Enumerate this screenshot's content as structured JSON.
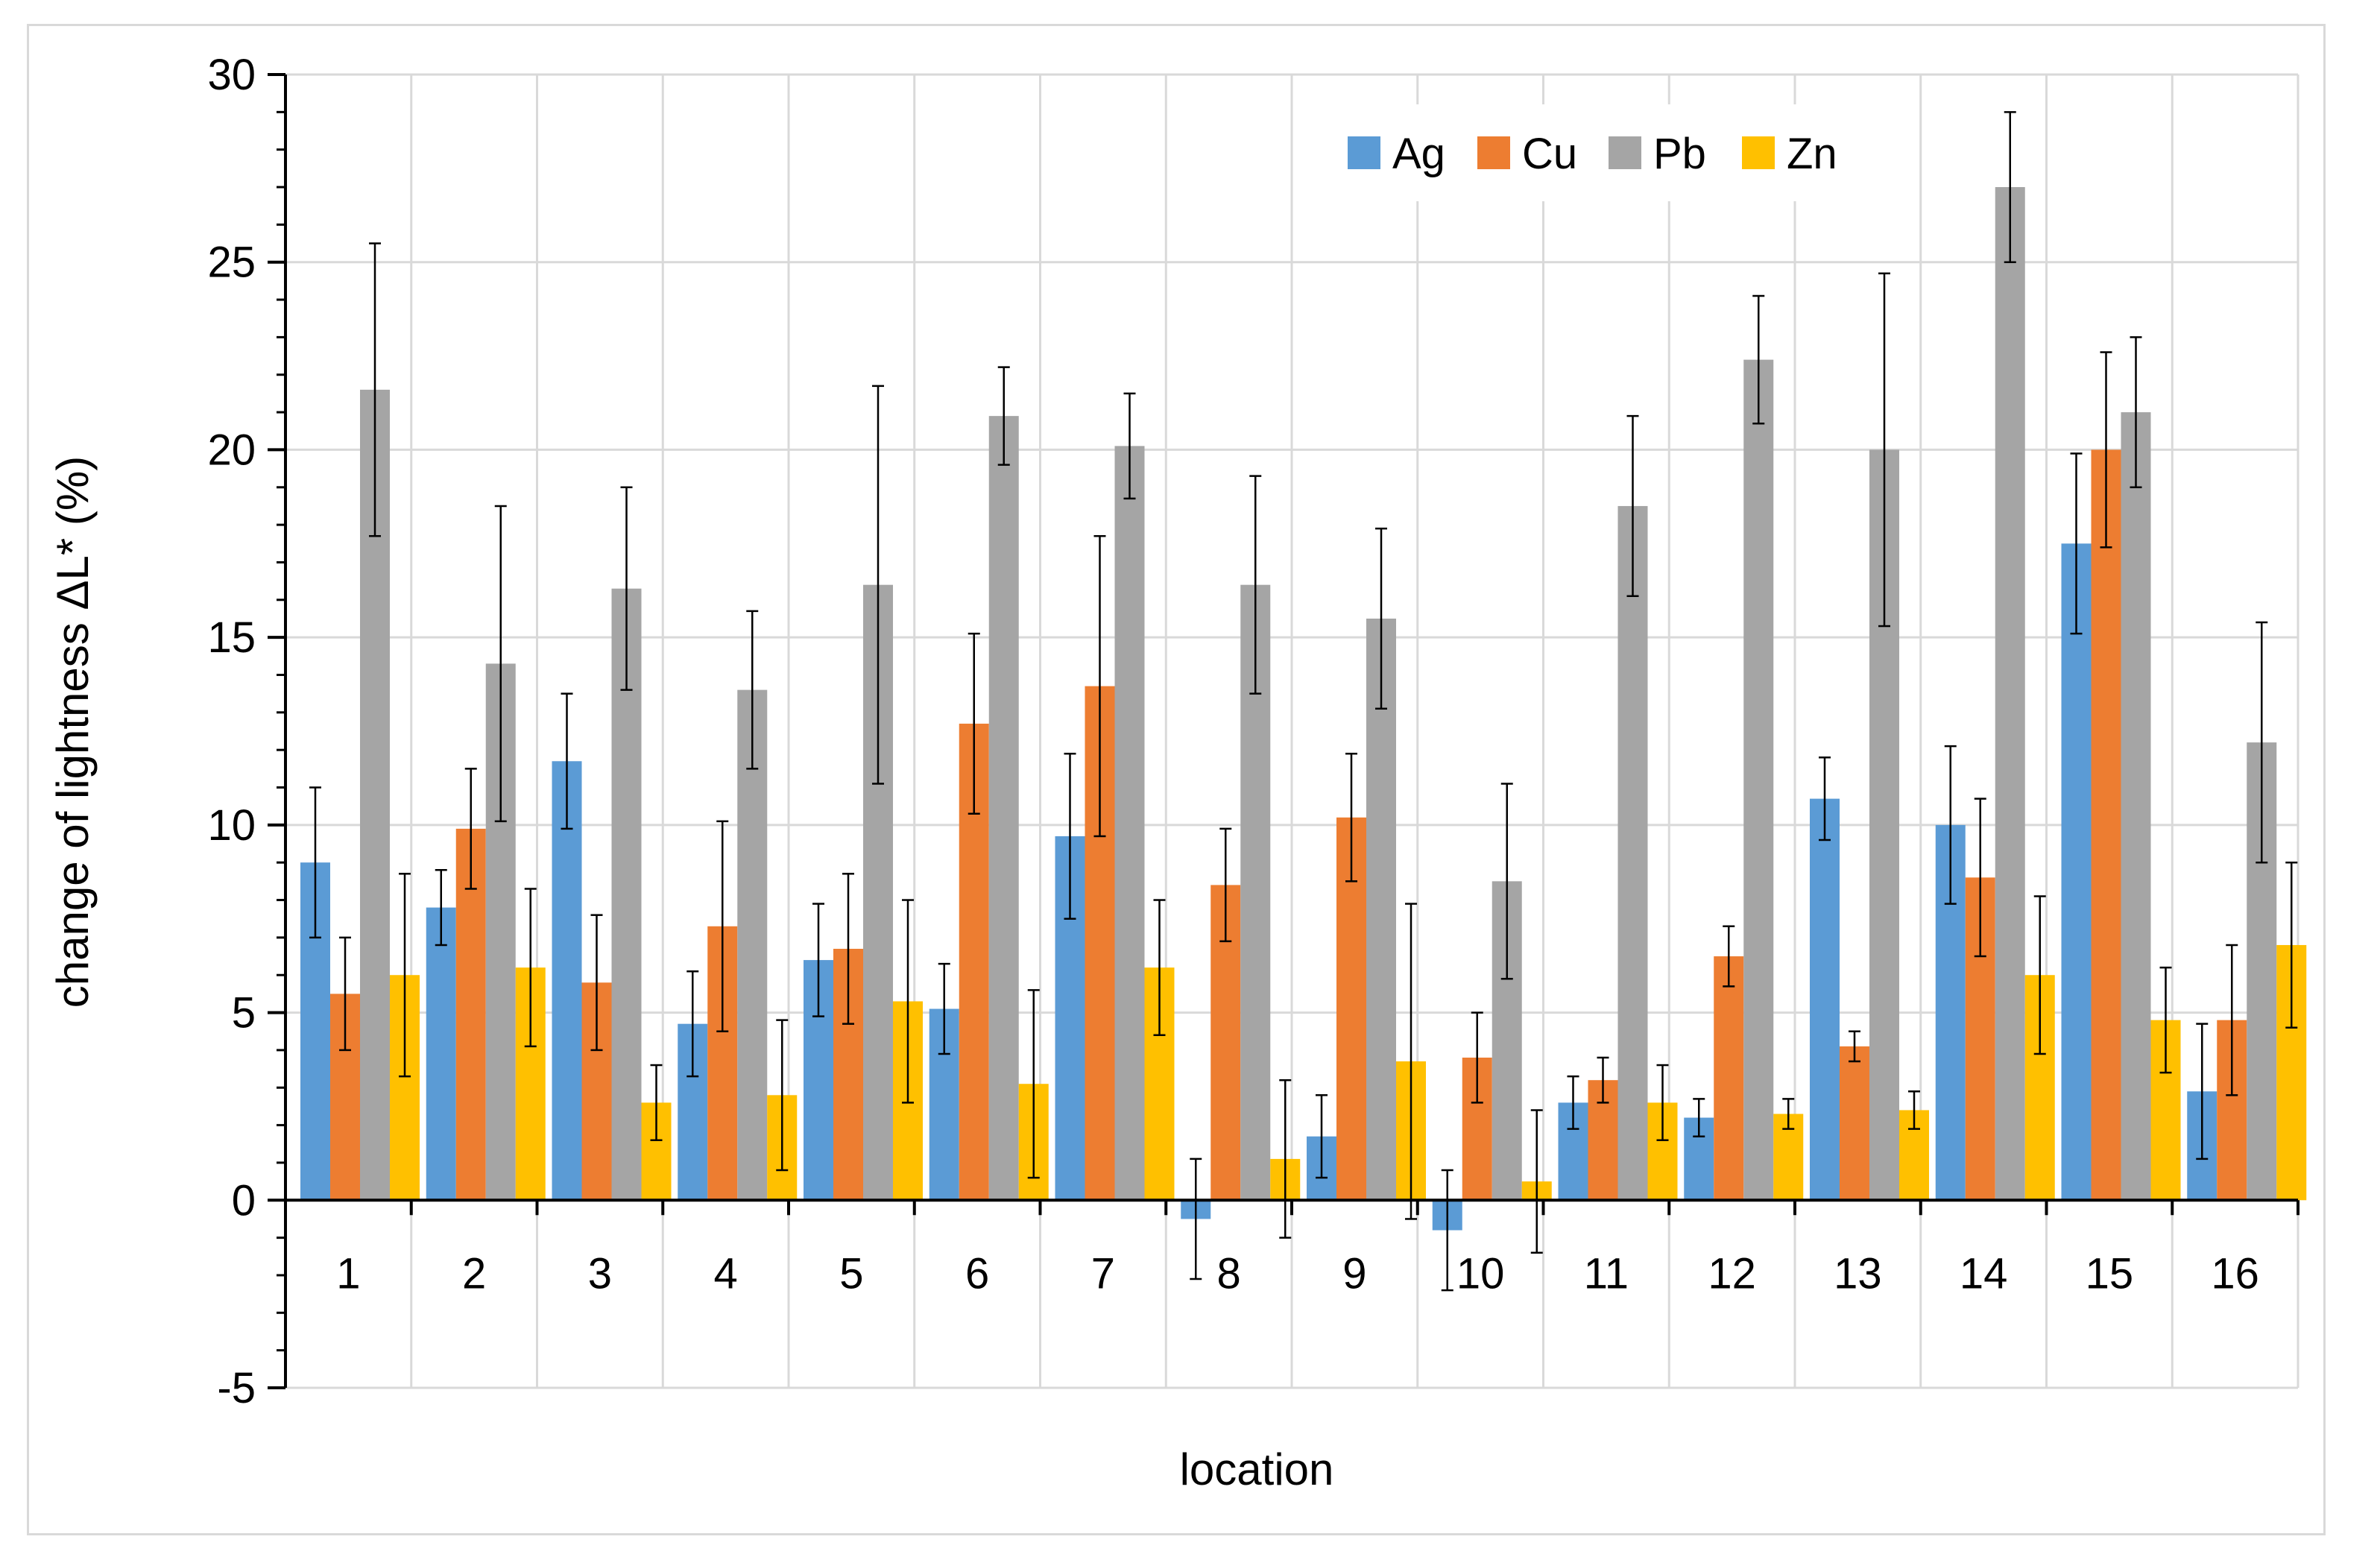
{
  "chart_data": {
    "type": "bar",
    "title": "",
    "xlabel": "location",
    "ylabel": "change of lightness ΔL* (%)",
    "ylim": [
      -5,
      30
    ],
    "yticks": [
      -5,
      0,
      5,
      10,
      15,
      20,
      25,
      30
    ],
    "grid": true,
    "legend_position": "top-right",
    "categories": [
      "1",
      "2",
      "3",
      "4",
      "5",
      "6",
      "7",
      "8",
      "9",
      "10",
      "11",
      "12",
      "13",
      "14",
      "15",
      "16"
    ],
    "series": [
      {
        "name": "Ag",
        "color": "#5b9bd5",
        "values": [
          9.0,
          7.8,
          11.7,
          4.7,
          6.4,
          5.1,
          9.7,
          -0.5,
          1.7,
          -0.8,
          2.6,
          2.2,
          10.7,
          10.0,
          17.5,
          2.9
        ],
        "errors": [
          2.0,
          1.0,
          1.8,
          1.4,
          1.5,
          1.2,
          2.2,
          1.6,
          1.1,
          1.6,
          0.7,
          0.5,
          1.1,
          2.1,
          2.4,
          1.8
        ]
      },
      {
        "name": "Cu",
        "color": "#ed7d31",
        "values": [
          5.5,
          9.9,
          5.8,
          7.3,
          6.7,
          12.7,
          13.7,
          8.4,
          10.2,
          3.8,
          3.2,
          6.5,
          4.1,
          8.6,
          20.0,
          4.8
        ],
        "errors": [
          1.5,
          1.6,
          1.8,
          2.8,
          2.0,
          2.4,
          4.0,
          1.5,
          1.7,
          1.2,
          0.6,
          0.8,
          0.4,
          2.1,
          2.6,
          2.0
        ]
      },
      {
        "name": "Pb",
        "color": "#a5a5a5",
        "values": [
          21.6,
          14.3,
          16.3,
          13.6,
          16.4,
          20.9,
          20.1,
          16.4,
          15.5,
          8.5,
          18.5,
          22.4,
          20.0,
          27.0,
          21.0,
          12.2
        ],
        "errors": [
          3.9,
          4.2,
          2.7,
          2.1,
          5.3,
          1.3,
          1.4,
          2.9,
          2.4,
          2.6,
          2.4,
          1.7,
          4.7,
          2.0,
          2.0,
          3.2
        ]
      },
      {
        "name": "Zn",
        "color": "#ffc000",
        "values": [
          6.0,
          6.2,
          2.6,
          2.8,
          5.3,
          3.1,
          6.2,
          1.1,
          3.7,
          0.5,
          2.6,
          2.3,
          2.4,
          6.0,
          4.8,
          6.8
        ],
        "errors": [
          2.7,
          2.1,
          1.0,
          2.0,
          2.7,
          2.5,
          1.8,
          2.1,
          4.2,
          1.9,
          1.0,
          0.4,
          0.5,
          2.1,
          1.4,
          2.2
        ]
      }
    ]
  }
}
